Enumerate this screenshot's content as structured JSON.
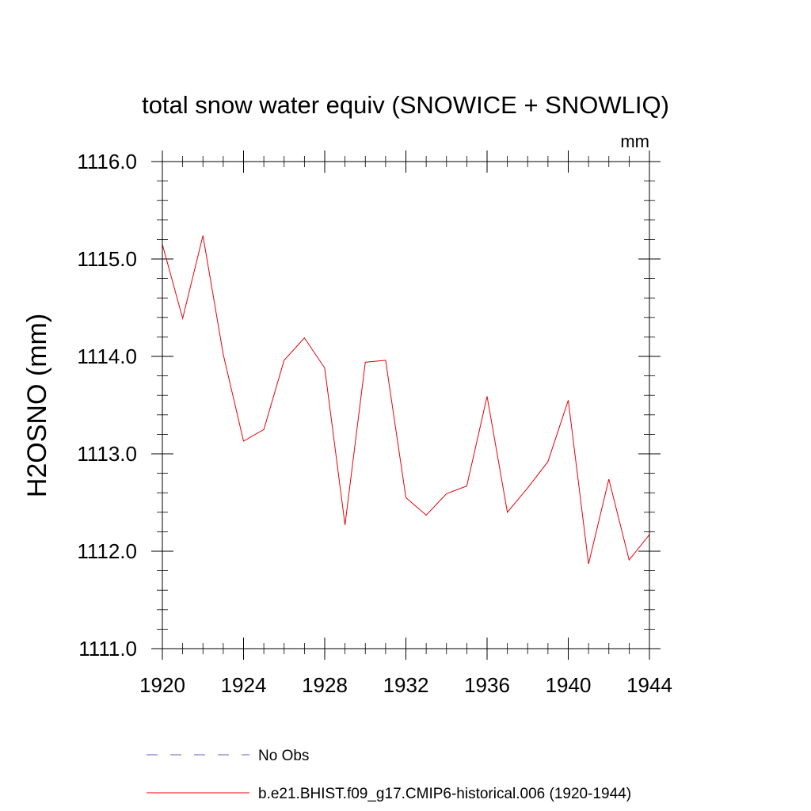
{
  "chart_data": {
    "type": "line",
    "title": "total snow water equiv (SNOWICE + SNOWLIQ)",
    "units": "mm",
    "ylabel": "H2OSNO  (mm)",
    "xlabel": "",
    "xlim": [
      1920,
      1944
    ],
    "ylim": [
      1111.0,
      1116.0
    ],
    "xticks": [
      1920,
      1924,
      1928,
      1932,
      1936,
      1940,
      1944
    ],
    "xtick_labels": [
      "1920",
      "1924",
      "1928",
      "1932",
      "1936",
      "1940",
      "1944"
    ],
    "yticks": [
      1111.0,
      1112.0,
      1113.0,
      1114.0,
      1115.0,
      1116.0
    ],
    "ytick_labels": [
      "1111.0",
      "1112.0",
      "1113.0",
      "1114.0",
      "1115.0",
      "1116.0"
    ],
    "series": [
      {
        "name": "b.e21.BHIST.f09_g17.CMIP6-historical.006 (1920-1944)",
        "color": "#e8000b",
        "style": "solid",
        "x": [
          1920,
          1921,
          1922,
          1923,
          1924,
          1925,
          1926,
          1927,
          1928,
          1929,
          1930,
          1931,
          1932,
          1933,
          1934,
          1935,
          1936,
          1937,
          1938,
          1939,
          1940,
          1941,
          1942,
          1943,
          1944
        ],
        "values": [
          1115.15,
          1114.39,
          1115.24,
          1114.02,
          1113.13,
          1113.25,
          1113.96,
          1114.19,
          1113.88,
          1112.27,
          1113.94,
          1113.96,
          1112.55,
          1112.37,
          1112.59,
          1112.67,
          1113.59,
          1112.4,
          1112.65,
          1112.92,
          1113.55,
          1111.87,
          1112.74,
          1111.91,
          1112.17
        ]
      }
    ],
    "legend": [
      {
        "label": "No Obs",
        "color": "#6a5acd",
        "style": "dashed"
      },
      {
        "label": "b.e21.BHIST.f09_g17.CMIP6-historical.006 (1920-1944)",
        "color": "#e8000b",
        "style": "solid"
      }
    ]
  }
}
